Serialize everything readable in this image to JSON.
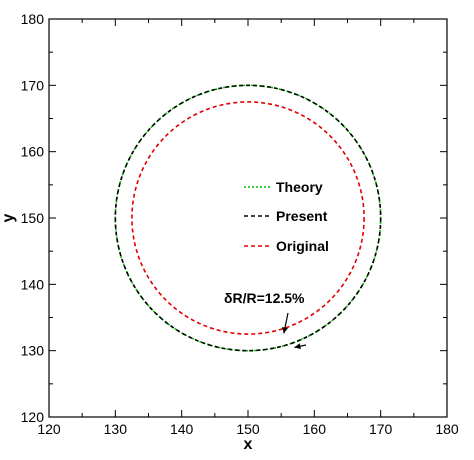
{
  "chart_data": {
    "type": "line",
    "xlabel": "x",
    "ylabel": "y",
    "xlim": [
      120,
      180
    ],
    "ylim": [
      120,
      180
    ],
    "xticks": [
      120,
      130,
      140,
      150,
      160,
      170,
      180
    ],
    "yticks": [
      120,
      130,
      140,
      150,
      160,
      170,
      180
    ],
    "grid": false,
    "legend_position": "center",
    "series": [
      {
        "name": "Theory",
        "shape": "circle",
        "center": [
          150,
          150
        ],
        "radius": 20,
        "color": "#00c000",
        "dash": "dotted"
      },
      {
        "name": "Present",
        "shape": "circle",
        "center": [
          150,
          150
        ],
        "radius": 20,
        "color": "#000000",
        "dash": "dashed"
      },
      {
        "name": "Original",
        "shape": "circle",
        "center": [
          150,
          150
        ],
        "radius": 17.5,
        "color": "#e00000",
        "dash": "dashed"
      }
    ],
    "annotation": {
      "text": "δR/R=12.5%",
      "arrow_targets": [
        [
          155.4,
          132.6
        ],
        [
          157,
          130.5
        ]
      ]
    }
  }
}
